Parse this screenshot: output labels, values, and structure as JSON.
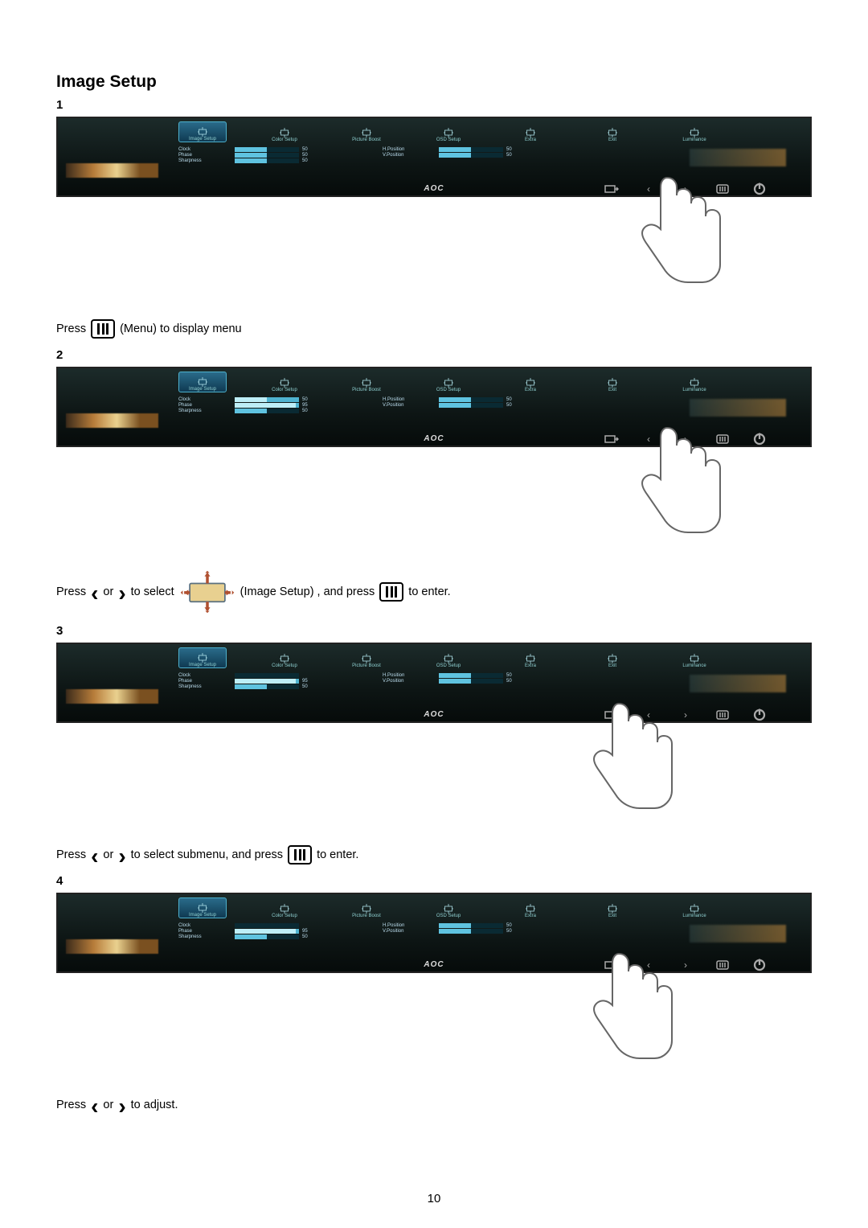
{
  "doc": {
    "section_title": "Image Setup",
    "page_number": "10"
  },
  "steps": [
    {
      "num": "1",
      "caption_parts": [
        "Press",
        "{menu}",
        "(Menu) to display menu"
      ],
      "osd": "osd1",
      "hand_target": "menu"
    },
    {
      "num": "2",
      "caption_parts": [
        "Press",
        "{left}",
        "or",
        "{right}",
        "to select",
        "{imagesetup}",
        "(Image Setup) , and press",
        "{menu}",
        "to enter."
      ],
      "osd": "osd2",
      "hand_target": "menu"
    },
    {
      "num": "3",
      "caption_parts": [
        "Press",
        "{left}",
        "or",
        "{right}",
        "to select submenu, and press",
        "{menu}",
        "to enter."
      ],
      "osd": "osd3",
      "hand_target": "right"
    },
    {
      "num": "4",
      "caption_parts": [
        "Press",
        "{left}",
        "or",
        "{right}",
        "to adjust."
      ],
      "osd": "osd4",
      "hand_target": "right"
    }
  ],
  "osd": {
    "tabs": [
      "Image Setup",
      "Color Setup",
      "Picture Boost",
      "OSD Setup",
      "Extra",
      "Exit",
      "Luminance"
    ],
    "brand": "AOC",
    "hw_icons": [
      "source-icon",
      "left-icon",
      "right-icon",
      "menu-icon",
      "power-icon"
    ],
    "variants": {
      "osd1": {
        "selected_tab": 0,
        "left_rows": [
          {
            "label": "Clock",
            "val": "50",
            "hl": false,
            "pct": 50
          },
          {
            "label": "Phase",
            "val": "50",
            "hl": false,
            "pct": 50
          },
          {
            "label": "Sharpness",
            "val": "50",
            "hl": false,
            "pct": 50
          }
        ],
        "right_rows": [
          {
            "label": "H.Position",
            "val": "50",
            "hl": false,
            "pct": 50
          },
          {
            "label": "V.Position",
            "val": "50",
            "hl": false,
            "pct": 50
          }
        ]
      },
      "osd2": {
        "selected_tab": 0,
        "left_rows": [
          {
            "label": "Clock",
            "val": "50",
            "hl": true,
            "pct": 50
          },
          {
            "label": "Phase",
            "val": "95",
            "hl": true,
            "pct": 95
          },
          {
            "label": "Sharpness",
            "val": "50",
            "hl": false,
            "pct": 50
          }
        ],
        "right_rows": [
          {
            "label": "H.Position",
            "val": "50",
            "hl": false,
            "pct": 50
          },
          {
            "label": "V.Position",
            "val": "50",
            "hl": false,
            "pct": 50
          }
        ]
      },
      "osd3": {
        "selected_tab": 0,
        "left_rows": [
          {
            "label": "Clock",
            "val": "",
            "hl": false,
            "pct": 0
          },
          {
            "label": "Phase",
            "val": "95",
            "hl": true,
            "pct": 95
          },
          {
            "label": "Sharpness",
            "val": "50",
            "hl": false,
            "pct": 50
          }
        ],
        "right_rows": [
          {
            "label": "H.Position",
            "val": "50",
            "hl": false,
            "pct": 50
          },
          {
            "label": "V.Position",
            "val": "50",
            "hl": false,
            "pct": 50
          }
        ]
      },
      "osd4": {
        "selected_tab": 0,
        "left_rows": [
          {
            "label": "Clock",
            "val": "",
            "hl": false,
            "pct": 0
          },
          {
            "label": "Phase",
            "val": "95",
            "hl": true,
            "pct": 95
          },
          {
            "label": "Sharpness",
            "val": "50",
            "hl": false,
            "pct": 50
          }
        ],
        "right_rows": [
          {
            "label": "H.Position",
            "val": "50",
            "hl": false,
            "pct": 50
          },
          {
            "label": "V.Position",
            "val": "50",
            "hl": false,
            "pct": 50
          }
        ]
      }
    }
  },
  "colors": {
    "osd_bg": "#142220",
    "bar_off": "#0a2a33",
    "bar_on": "#5fc3e0",
    "tab_sel": "#2a6b8a"
  }
}
